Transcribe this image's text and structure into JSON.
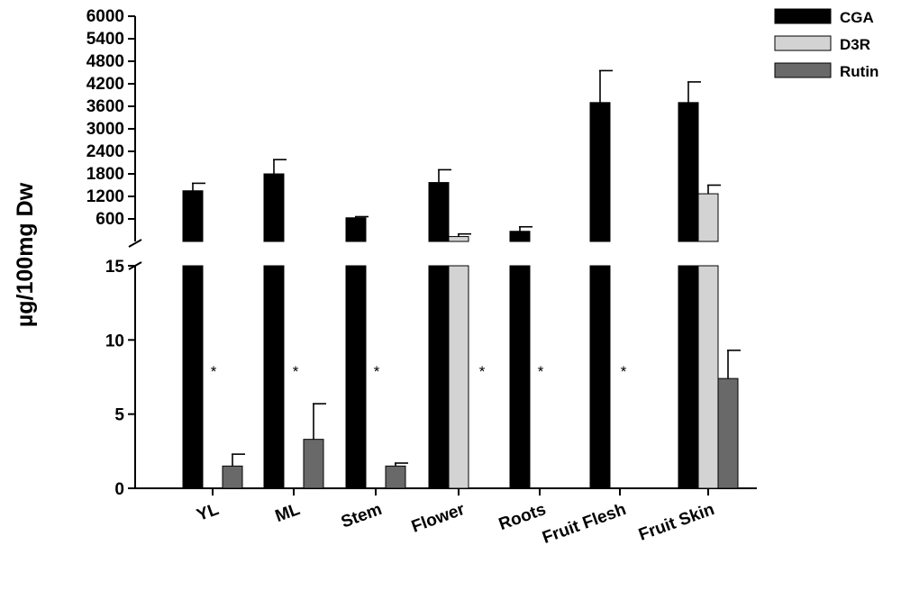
{
  "chart_data": {
    "type": "bar",
    "ylabel": "µg/100mg Dw",
    "broken_axis": true,
    "categories": [
      "YL",
      "ML",
      "Stem",
      "Flower",
      "Roots",
      "Fruit Flesh",
      "Fruit Skin"
    ],
    "upper_panel": {
      "ylim": [
        0,
        6000
      ],
      "ticks": [
        "600",
        "1200",
        "1800",
        "2400",
        "3000",
        "3600",
        "4200",
        "4800",
        "5400",
        "6000"
      ]
    },
    "lower_panel": {
      "ylim": [
        0,
        15
      ],
      "ticks": [
        "0",
        "5",
        "10",
        "15"
      ]
    },
    "series": [
      {
        "name": "CGA",
        "color": "#000000",
        "values": [
          1350,
          1800,
          630,
          1570,
          270,
          3700,
          3700
        ],
        "errors": [
          200,
          380,
          30,
          340,
          120,
          850,
          550
        ]
      },
      {
        "name": "D3R",
        "color": "#d3d3d3",
        "values": [
          null,
          null,
          null,
          130,
          null,
          null,
          1270
        ],
        "errors": [
          null,
          null,
          null,
          70,
          null,
          null,
          230
        ]
      },
      {
        "name": "Rutin",
        "color": "#696969",
        "values": [
          1.5,
          3.3,
          1.5,
          null,
          null,
          null,
          7.4
        ],
        "errors": [
          0.8,
          2.4,
          0.2,
          null,
          null,
          null,
          1.9
        ]
      }
    ],
    "annotations": [
      {
        "category": "YL",
        "text": "*"
      },
      {
        "category": "ML",
        "text": "*"
      },
      {
        "category": "Stem",
        "text": "*"
      },
      {
        "category": "Flower",
        "text": "*"
      },
      {
        "category": "Roots",
        "text": "*"
      },
      {
        "category": "Fruit Flesh",
        "text": "*"
      }
    ],
    "legend": {
      "placement": "top-right",
      "entries": [
        "CGA",
        "D3R",
        "Rutin"
      ]
    }
  }
}
